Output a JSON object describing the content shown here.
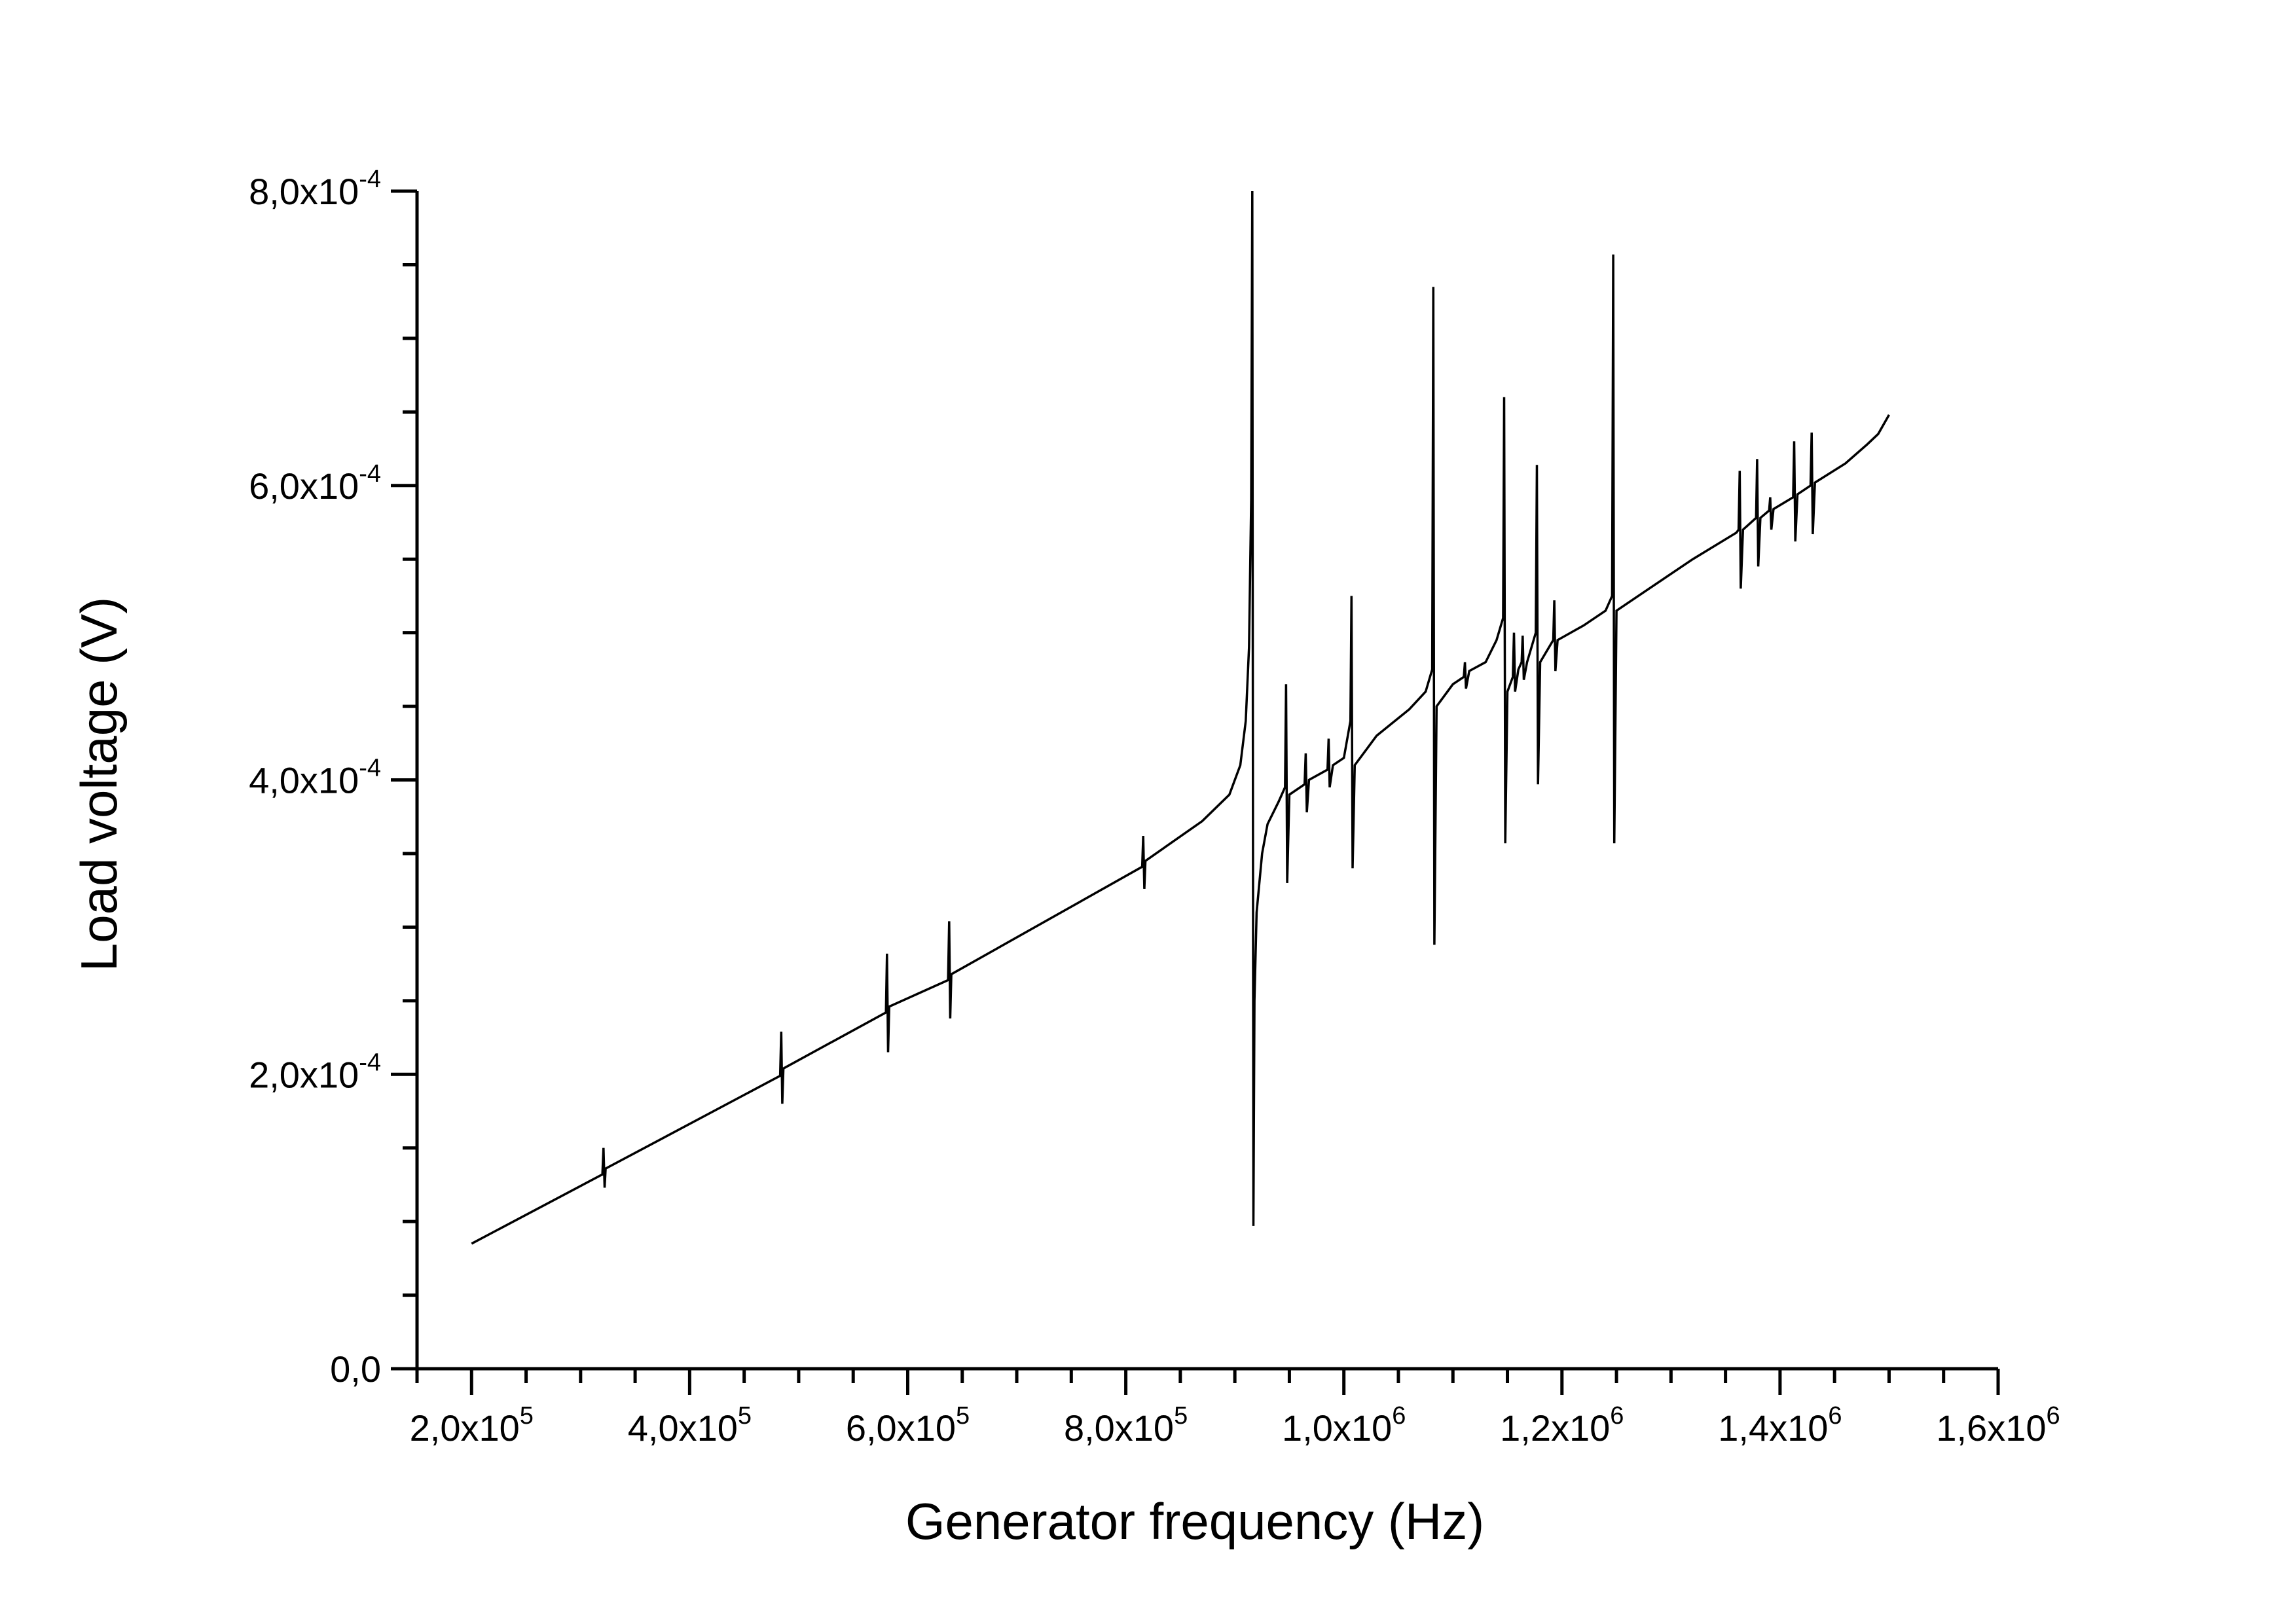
{
  "chart_data": {
    "type": "line",
    "title": "",
    "xlabel": "Generator frequency (Hz)",
    "ylabel": "Load voltage (V)",
    "xlim": [
      150000,
      1600000
    ],
    "ylim": [
      0,
      0.0008
    ],
    "grid": false,
    "legend": "none",
    "line_color": "#000000",
    "x_ticks": [
      {
        "value": 200000,
        "mantissa": "2,0x10",
        "exp": "5"
      },
      {
        "value": 400000,
        "mantissa": "4,0x10",
        "exp": "5"
      },
      {
        "value": 600000,
        "mantissa": "6,0x10",
        "exp": "5"
      },
      {
        "value": 800000,
        "mantissa": "8,0x10",
        "exp": "5"
      },
      {
        "value": 1000000,
        "mantissa": "1,0x10",
        "exp": "6"
      },
      {
        "value": 1200000,
        "mantissa": "1,2x10",
        "exp": "6"
      },
      {
        "value": 1400000,
        "mantissa": "1,4x10",
        "exp": "6"
      },
      {
        "value": 1600000,
        "mantissa": "1,6x10",
        "exp": "6"
      }
    ],
    "y_ticks": [
      {
        "value": 0,
        "mantissa": "0,0",
        "exp": ""
      },
      {
        "value": 0.0002,
        "mantissa": "2,0x10",
        "exp": "-4"
      },
      {
        "value": 0.0004,
        "mantissa": "4,0x10",
        "exp": "-4"
      },
      {
        "value": 0.0006,
        "mantissa": "6,0x10",
        "exp": "-4"
      },
      {
        "value": 0.0008,
        "mantissa": "8,0x10",
        "exp": "-4"
      }
    ],
    "series": [
      {
        "points": [
          [
            200000,
            8.5e-05
          ],
          [
            320000,
            0.000132
          ],
          [
            321000,
            0.00015
          ],
          [
            322000,
            0.000123
          ],
          [
            323000,
            0.000136
          ],
          [
            483000,
            0.000199
          ],
          [
            484000,
            0.000229
          ],
          [
            485000,
            0.00018
          ],
          [
            486000,
            0.000204
          ],
          [
            580000,
            0.000242
          ],
          [
            581000,
            0.000282
          ],
          [
            582000,
            0.000215
          ],
          [
            583000,
            0.000246
          ],
          [
            637000,
            0.000264
          ],
          [
            638000,
            0.000304
          ],
          [
            639000,
            0.000238
          ],
          [
            640000,
            0.000268
          ],
          [
            815000,
            0.000341
          ],
          [
            816000,
            0.000362
          ],
          [
            817000,
            0.000326
          ],
          [
            818000,
            0.000345
          ],
          [
            870000,
            0.000372
          ],
          [
            895000,
            0.00039
          ],
          [
            905000,
            0.00041
          ],
          [
            910000,
            0.00044
          ],
          [
            913000,
            0.00049
          ],
          [
            915000,
            0.00059
          ],
          [
            916000,
            0.0008
          ],
          [
            917000,
            9.7e-05
          ],
          [
            918000,
            0.00025
          ],
          [
            920000,
            0.00031
          ],
          [
            925000,
            0.00035
          ],
          [
            930000,
            0.00037
          ],
          [
            940000,
            0.000385
          ],
          [
            946000,
            0.000395
          ],
          [
            947000,
            0.000465
          ],
          [
            948000,
            0.00033
          ],
          [
            950000,
            0.00039
          ],
          [
            964000,
            0.000397
          ],
          [
            965000,
            0.000418
          ],
          [
            966000,
            0.000378
          ],
          [
            968000,
            0.0004
          ],
          [
            985000,
            0.000407
          ],
          [
            986000,
            0.000428
          ],
          [
            987000,
            0.000395
          ],
          [
            990000,
            0.00041
          ],
          [
            1000000,
            0.000415
          ],
          [
            1006000,
            0.00044
          ],
          [
            1007000,
            0.000525
          ],
          [
            1008000,
            0.00034
          ],
          [
            1010000,
            0.00041
          ],
          [
            1030000,
            0.00043
          ],
          [
            1060000,
            0.000448
          ],
          [
            1075000,
            0.00046
          ],
          [
            1081000,
            0.000475
          ],
          [
            1082000,
            0.000735
          ],
          [
            1083000,
            0.000288
          ],
          [
            1085000,
            0.00045
          ],
          [
            1100000,
            0.000465
          ],
          [
            1110000,
            0.00047
          ],
          [
            1111000,
            0.00048
          ],
          [
            1112000,
            0.000462
          ],
          [
            1115000,
            0.000474
          ],
          [
            1130000,
            0.00048
          ],
          [
            1140000,
            0.000495
          ],
          [
            1146000,
            0.00051
          ],
          [
            1147000,
            0.00066
          ],
          [
            1148000,
            0.000357
          ],
          [
            1150000,
            0.00046
          ],
          [
            1155000,
            0.00047
          ],
          [
            1156000,
            0.0005
          ],
          [
            1157000,
            0.00046
          ],
          [
            1160000,
            0.000475
          ],
          [
            1163000,
            0.00048
          ],
          [
            1164000,
            0.000498
          ],
          [
            1165000,
            0.000468
          ],
          [
            1168000,
            0.00048
          ],
          [
            1176000,
            0.0005
          ],
          [
            1177000,
            0.000614
          ],
          [
            1178000,
            0.000397
          ],
          [
            1180000,
            0.00048
          ],
          [
            1192000,
            0.000495
          ],
          [
            1193000,
            0.000522
          ],
          [
            1194000,
            0.000474
          ],
          [
            1196000,
            0.000495
          ],
          [
            1220000,
            0.000505
          ],
          [
            1240000,
            0.000515
          ],
          [
            1246000,
            0.000525
          ],
          [
            1247000,
            0.000757
          ],
          [
            1248000,
            0.000357
          ],
          [
            1250000,
            0.000515
          ],
          [
            1280000,
            0.00053
          ],
          [
            1320000,
            0.00055
          ],
          [
            1360000,
            0.000568
          ],
          [
            1362000,
            0.00057
          ],
          [
            1363000,
            0.00061
          ],
          [
            1364000,
            0.00053
          ],
          [
            1366000,
            0.00057
          ],
          [
            1378000,
            0.000578
          ],
          [
            1379000,
            0.000618
          ],
          [
            1380000,
            0.000545
          ],
          [
            1382000,
            0.000578
          ],
          [
            1390000,
            0.000583
          ],
          [
            1391000,
            0.000592
          ],
          [
            1392000,
            0.00057
          ],
          [
            1394000,
            0.000584
          ],
          [
            1412000,
            0.000592
          ],
          [
            1413000,
            0.00063
          ],
          [
            1414000,
            0.000562
          ],
          [
            1416000,
            0.000594
          ],
          [
            1428000,
            0.0006
          ],
          [
            1429000,
            0.000636
          ],
          [
            1430000,
            0.000567
          ],
          [
            1432000,
            0.000602
          ],
          [
            1460000,
            0.000615
          ],
          [
            1480000,
            0.000628
          ],
          [
            1490000,
            0.000635
          ],
          [
            1500000,
            0.000648
          ]
        ]
      }
    ]
  }
}
